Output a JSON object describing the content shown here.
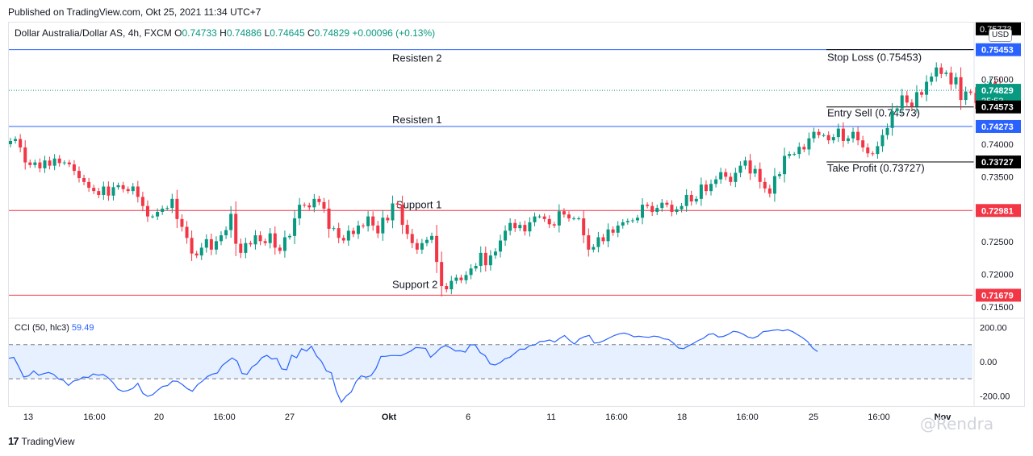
{
  "header": {
    "published": "Published on TradingView.com, Okt 25, 2021 11:34 UTC+7",
    "symbol": "Dollar Australia/Dollar AS, 4h, FXCM",
    "open_label": "O",
    "open": "0.74733",
    "high_label": "H",
    "high": "0.74886",
    "low_label": "L",
    "low": "0.74645",
    "close_label": "C",
    "close": "0.74829",
    "change": "+0.00096 (+0.13%)",
    "currency": "USD"
  },
  "cci_legend": {
    "label": "CCI (50, hlc3)",
    "value": "59.49"
  },
  "footer": {
    "brand": "TradingView",
    "logo_mark": "17",
    "watermark": "@Rendra"
  },
  "chart_data": [
    {
      "type": "candlestick",
      "title": "",
      "y_range": [
        0.7135,
        0.7587
      ],
      "y_ticks": [
        "0.75000",
        "0.74000",
        "0.73500",
        "0.72500",
        "0.72000",
        "0.71500"
      ],
      "y_tick_values": [
        0.75,
        0.74,
        0.735,
        0.725,
        0.72,
        0.715
      ],
      "x_ticks": [
        "13",
        "16:00",
        "20",
        "16:00",
        "27",
        "Okt",
        "6",
        "11",
        "16:00",
        "18",
        "16:00",
        "25",
        "16:00",
        "Nov"
      ],
      "levels": [
        {
          "label": "Resisten 2",
          "value": 0.75453,
          "color": "#2962ff"
        },
        {
          "label": "Resisten 1",
          "value": 0.74273,
          "color": "#2962ff"
        },
        {
          "label": "Support 1",
          "value": 0.72981,
          "color": "#f23645"
        },
        {
          "label": "Support 2",
          "value": 0.71679,
          "color": "#f23645"
        }
      ],
      "trade_levels": [
        {
          "label": "Stop Loss (0.75453)",
          "value": 0.75453
        },
        {
          "label": "Entry Sell (0.74573)",
          "value": 0.74573
        },
        {
          "label": "Take Profit (0.73727)",
          "value": 0.73727
        }
      ],
      "price_labels": [
        {
          "text": "0.75453",
          "value": 0.75453,
          "bg": "#2962ff"
        },
        {
          "text": "0.74829",
          "value": 0.74829,
          "bg": "#089981",
          "sub": "25:53"
        },
        {
          "text": "0.74573",
          "value": 0.74573,
          "bg": "#000000"
        },
        {
          "text": "0.74273",
          "value": 0.74273,
          "bg": "#2962ff"
        },
        {
          "text": "0.73727",
          "value": 0.73727,
          "bg": "#000000"
        },
        {
          "text": "0.72981",
          "value": 0.72981,
          "bg": "#f23645"
        },
        {
          "text": "0.71679",
          "value": 0.71679,
          "bg": "#f23645"
        }
      ],
      "top_label": "0.75773",
      "current_price": 0.74829,
      "up_color": "#089981",
      "down_color": "#f23645",
      "closes": [
        0.7405,
        0.7408,
        0.7395,
        0.7372,
        0.7368,
        0.7372,
        0.7363,
        0.7375,
        0.7367,
        0.7378,
        0.7371,
        0.7372,
        0.7369,
        0.7359,
        0.7348,
        0.7342,
        0.7333,
        0.7328,
        0.7322,
        0.7335,
        0.7321,
        0.7334,
        0.7337,
        0.7331,
        0.7328,
        0.7335,
        0.7319,
        0.7305,
        0.7289,
        0.7289,
        0.7296,
        0.7301,
        0.7302,
        0.7316,
        0.7285,
        0.7273,
        0.7256,
        0.7232,
        0.7229,
        0.7241,
        0.7254,
        0.7238,
        0.7251,
        0.726,
        0.7268,
        0.7293,
        0.7247,
        0.7233,
        0.7248,
        0.7246,
        0.726,
        0.7251,
        0.7248,
        0.7263,
        0.7241,
        0.7236,
        0.7257,
        0.7259,
        0.7286,
        0.7307,
        0.7306,
        0.7303,
        0.7316,
        0.7311,
        0.7301,
        0.727,
        0.7271,
        0.7256,
        0.7252,
        0.7267,
        0.7262,
        0.7275,
        0.7274,
        0.7289,
        0.7275,
        0.7263,
        0.7287,
        0.7283,
        0.7309,
        0.7307,
        0.7276,
        0.7262,
        0.7248,
        0.7238,
        0.7248,
        0.7253,
        0.7259,
        0.7219,
        0.7182,
        0.7177,
        0.719,
        0.7195,
        0.7191,
        0.7199,
        0.7209,
        0.7213,
        0.7233,
        0.7214,
        0.7229,
        0.7235,
        0.7252,
        0.7267,
        0.7279,
        0.7271,
        0.7276,
        0.7266,
        0.728,
        0.7289,
        0.7289,
        0.7285,
        0.7277,
        0.7275,
        0.7297,
        0.7292,
        0.7286,
        0.7286,
        0.7286,
        0.726,
        0.7238,
        0.7242,
        0.7257,
        0.7251,
        0.7269,
        0.7264,
        0.7275,
        0.728,
        0.7282,
        0.7283,
        0.7287,
        0.7307,
        0.7305,
        0.7296,
        0.7302,
        0.731,
        0.7307,
        0.7296,
        0.73,
        0.7305,
        0.7322,
        0.7312,
        0.7316,
        0.7338,
        0.7328,
        0.7339,
        0.7346,
        0.7357,
        0.735,
        0.7342,
        0.7356,
        0.7367,
        0.7375,
        0.7355,
        0.7362,
        0.7342,
        0.7332,
        0.7324,
        0.7351,
        0.7354,
        0.7382,
        0.7385,
        0.7385,
        0.7396,
        0.7392,
        0.7409,
        0.7419,
        0.7414,
        0.7414,
        0.7406,
        0.7411,
        0.7424,
        0.7405,
        0.7409,
        0.7419,
        0.7406,
        0.7395,
        0.7386,
        0.7385,
        0.7397,
        0.7414,
        0.7425,
        0.7451,
        0.7455,
        0.7475,
        0.7464,
        0.7458,
        0.748,
        0.7476,
        0.7496,
        0.7504,
        0.7518,
        0.7508,
        0.751,
        0.7492,
        0.7503,
        0.7468,
        0.7481,
        0.7479,
        0.7463,
        0.7463,
        0.7484,
        0.7495,
        0.7492,
        0.7472,
        0.7472,
        0.7473,
        0.7483
      ],
      "x_start": 13,
      "x_step": 6.07
    },
    {
      "type": "line",
      "title": "CCI (50, hlc3)",
      "y_range": [
        -260,
        250
      ],
      "y_ticks": [
        "200.00",
        "0.00",
        "-200.00"
      ],
      "y_tick_values": [
        200,
        0,
        -200
      ],
      "band": [
        100,
        -100
      ],
      "color": "#2962ff",
      "band_color": "#dbeafe",
      "values": [
        20,
        25,
        -30,
        -90,
        -83,
        -54,
        -79,
        -70,
        -63,
        -74,
        -101,
        -109,
        -139,
        -114,
        -107,
        -90,
        -93,
        -72,
        -79,
        -75,
        -94,
        -123,
        -162,
        -174,
        -169,
        -156,
        -127,
        -186,
        -203,
        -193,
        -167,
        -145,
        -140,
        -113,
        -115,
        -135,
        -159,
        -173,
        -136,
        -114,
        -87,
        -73,
        -67,
        -23,
        0,
        22,
        3,
        -69,
        -74,
        -31,
        -12,
        24,
        37,
        16,
        19,
        -43,
        -47,
        38,
        23,
        76,
        62,
        91,
        34,
        2,
        -54,
        -65,
        -172,
        -238,
        -201,
        -178,
        -116,
        -83,
        -91,
        -82,
        -40,
        31,
        32,
        36,
        36,
        35,
        48,
        62,
        83,
        81,
        78,
        26,
        51,
        80,
        95,
        82,
        63,
        64,
        56,
        99,
        99,
        53,
        36,
        -13,
        -19,
        -6,
        17,
        26,
        50,
        74,
        73,
        95,
        98,
        118,
        120,
        127,
        115,
        136,
        153,
        126,
        103,
        133,
        146,
        154,
        109,
        112,
        124,
        139,
        153,
        163,
        168,
        160,
        146,
        149,
        145,
        143,
        150,
        146,
        134,
        130,
        108,
        80,
        76,
        93,
        108,
        125,
        137,
        160,
        164,
        145,
        148,
        160,
        178,
        174,
        161,
        144,
        138,
        150,
        176,
        179,
        184,
        187,
        181,
        187,
        176,
        158,
        140,
        118,
        80,
        59
      ],
      "x_start": 13,
      "x_step": 6.07
    }
  ]
}
